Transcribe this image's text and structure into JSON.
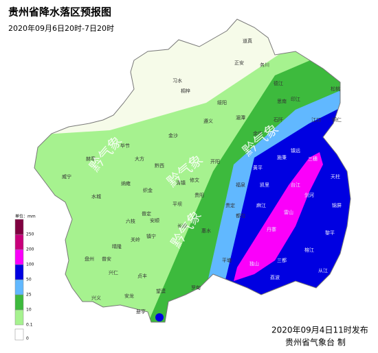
{
  "header": {
    "title": "贵州省降水落区预报图",
    "subtitle": "2020年09月6日20时-7日20时"
  },
  "legend": {
    "unit": "单位：mm",
    "levels": [
      0,
      0.1,
      10,
      25,
      50,
      100,
      200,
      250
    ],
    "colors": [
      "#ffffff",
      "#a6f28f",
      "#3dba3d",
      "#61b8ff",
      "#0000e1",
      "#fa00fa",
      "#c8007a",
      "#800040"
    ]
  },
  "places": [
    "道真",
    "正安",
    "务川",
    "习水",
    "桐梓",
    "绥阳",
    "遵义",
    "湄潭",
    "德江",
    "思南",
    "印江",
    "松桃",
    "铜仁",
    "江口",
    "石阡",
    "余庆",
    "金沙",
    "毕节",
    "大方",
    "黔西",
    "赫章",
    "威宁",
    "纳雍",
    "织金",
    "水城",
    "六枝",
    "普定",
    "安顺",
    "平坝",
    "清镇",
    "修文",
    "开阳",
    "贵阳",
    "长顺",
    "镇宁",
    "关岭",
    "晴隆",
    "盘州",
    "普安",
    "兴仁",
    "兴义",
    "安龙",
    "贞丰",
    "册亨",
    "望谟",
    "罗甸",
    "惠水",
    "平塘",
    "独山",
    "荔波",
    "三都",
    "都匀",
    "贵定",
    "福泉",
    "麻江",
    "凯里",
    "黄平",
    "施秉",
    "镇远",
    "三穗",
    "台江",
    "剑河",
    "雷山",
    "丹寨",
    "天柱",
    "锦屏",
    "黎平",
    "榕江",
    "从江"
  ],
  "watermarks": [
    "黔气象",
    "黔气象",
    "黔气象",
    "黔气象"
  ],
  "footer": {
    "issued": "2020年09月4日11时发布",
    "producer": "贵州省气象台 制"
  }
}
